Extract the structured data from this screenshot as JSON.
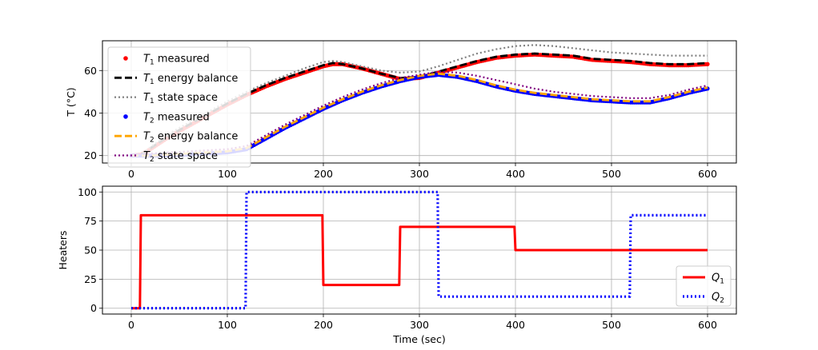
{
  "chart_data": [
    {
      "type": "line",
      "ylabel": "T (°C)",
      "xlim": [
        -30,
        630
      ],
      "ylim": [
        16.5,
        74
      ],
      "x_ticks": [
        0,
        100,
        200,
        300,
        400,
        500,
        600
      ],
      "y_ticks": [
        20,
        40,
        60
      ],
      "grid": true,
      "legend_position": "upper-left",
      "series": [
        {
          "name": "T1 measured",
          "style": "markers",
          "color": "#ff0000",
          "x": [
            0,
            10,
            20,
            40,
            60,
            80,
            100,
            120,
            140,
            160,
            180,
            200,
            210,
            220,
            240,
            260,
            280,
            300,
            320,
            340,
            360,
            380,
            400,
            420,
            440,
            460,
            480,
            500,
            520,
            540,
            560,
            580,
            600
          ],
          "y": [
            20,
            20.5,
            23,
            29,
            34,
            39,
            44,
            48.5,
            52.5,
            56,
            59,
            62,
            63,
            63,
            61,
            58.5,
            56,
            56.5,
            59,
            61.5,
            64,
            66,
            67,
            67.5,
            67,
            66.5,
            65,
            64.5,
            64,
            63,
            62.5,
            62.5,
            63
          ]
        },
        {
          "name": "T1 energy balance",
          "style": "dashed",
          "color": "#000000",
          "x": [
            0,
            10,
            20,
            40,
            60,
            80,
            100,
            120,
            140,
            160,
            180,
            200,
            210,
            220,
            240,
            260,
            280,
            300,
            320,
            340,
            360,
            380,
            400,
            420,
            440,
            460,
            480,
            500,
            520,
            540,
            560,
            580,
            600
          ],
          "y": [
            20,
            20.5,
            23.5,
            29.5,
            34.5,
            39.5,
            44.5,
            49,
            53,
            56.5,
            59.5,
            62.5,
            63.5,
            63,
            61,
            58.5,
            56.5,
            57,
            59.5,
            62,
            64.5,
            66.5,
            67.5,
            68,
            67.5,
            67,
            65.5,
            65,
            64.5,
            63.5,
            63,
            63,
            63.5
          ]
        },
        {
          "name": "T1 state space",
          "style": "dotted",
          "color": "#808080",
          "x": [
            0,
            10,
            20,
            40,
            60,
            80,
            100,
            120,
            140,
            160,
            180,
            200,
            210,
            220,
            240,
            260,
            280,
            300,
            320,
            340,
            360,
            380,
            400,
            420,
            440,
            460,
            480,
            500,
            520,
            540,
            560,
            580,
            600
          ],
          "y": [
            20,
            20.5,
            24,
            30.5,
            35.5,
            40.5,
            45.5,
            50,
            54,
            57.5,
            61,
            64,
            64.5,
            64,
            62,
            60,
            59,
            59.5,
            62,
            65,
            68,
            70,
            71.5,
            72,
            71.5,
            70.5,
            69.5,
            68.5,
            68,
            67.5,
            67,
            67,
            67
          ]
        },
        {
          "name": "T2 measured",
          "style": "markers",
          "color": "#0000ff",
          "x": [
            0,
            20,
            40,
            60,
            80,
            100,
            120,
            140,
            160,
            180,
            200,
            220,
            240,
            260,
            280,
            300,
            320,
            340,
            360,
            380,
            400,
            420,
            440,
            460,
            480,
            500,
            520,
            540,
            560,
            580,
            600
          ],
          "y": [
            20,
            20,
            20,
            20.5,
            21,
            21.5,
            23,
            28,
            33,
            37.5,
            42,
            46,
            49.5,
            52.5,
            55,
            57,
            58,
            57,
            55,
            52.5,
            50.5,
            49,
            48,
            47,
            46,
            45.5,
            45,
            45,
            47,
            49.5,
            51.5
          ]
        },
        {
          "name": "T2 energy balance",
          "style": "dashed",
          "color": "#ffa500",
          "x": [
            0,
            20,
            40,
            60,
            80,
            100,
            120,
            140,
            160,
            180,
            200,
            220,
            240,
            260,
            280,
            300,
            320,
            340,
            360,
            380,
            400,
            420,
            440,
            460,
            480,
            500,
            520,
            540,
            560,
            580,
            600
          ],
          "y": [
            20,
            20,
            20.5,
            21,
            21.5,
            22,
            23.5,
            28.5,
            33.5,
            38,
            42.5,
            46.5,
            50,
            53,
            55.5,
            57.5,
            58.5,
            57.5,
            55.5,
            53,
            51,
            49.5,
            48.5,
            47.5,
            46.5,
            46,
            45.5,
            45.5,
            47.5,
            50,
            52
          ]
        },
        {
          "name": "T2 state space",
          "style": "dotted",
          "color": "#800080",
          "x": [
            0,
            20,
            40,
            60,
            80,
            100,
            120,
            140,
            160,
            180,
            200,
            220,
            240,
            260,
            280,
            300,
            320,
            340,
            360,
            380,
            400,
            420,
            440,
            460,
            480,
            500,
            520,
            540,
            560,
            580,
            600
          ],
          "y": [
            20,
            21,
            21.5,
            22,
            22.5,
            23,
            24.5,
            29.5,
            34.5,
            39,
            43.5,
            47.5,
            51,
            54,
            56.5,
            58,
            59.5,
            59,
            57.5,
            55.5,
            53.5,
            51.5,
            50,
            49,
            48,
            47.5,
            47,
            47,
            48.5,
            51,
            53
          ]
        }
      ]
    },
    {
      "type": "line",
      "xlabel": "Time (sec)",
      "ylabel": "Heaters",
      "xlim": [
        -30,
        630
      ],
      "ylim": [
        -5,
        105
      ],
      "x_ticks": [
        0,
        100,
        200,
        300,
        400,
        500,
        600
      ],
      "y_ticks": [
        0,
        25,
        50,
        75,
        100
      ],
      "grid": true,
      "legend_position": "lower-right",
      "series": [
        {
          "name": "Q1",
          "style": "solid",
          "color": "#ff0000",
          "x": [
            0,
            9,
            10,
            199,
            200,
            279,
            280,
            399,
            400,
            600
          ],
          "y": [
            0,
            0,
            80,
            80,
            20,
            20,
            70,
            70,
            50,
            50
          ]
        },
        {
          "name": "Q2",
          "style": "dotted",
          "color": "#0000ff",
          "x": [
            0,
            119,
            120,
            319,
            320,
            519,
            520,
            600
          ],
          "y": [
            0,
            0,
            100,
            100,
            10,
            10,
            80,
            80
          ]
        }
      ]
    }
  ]
}
